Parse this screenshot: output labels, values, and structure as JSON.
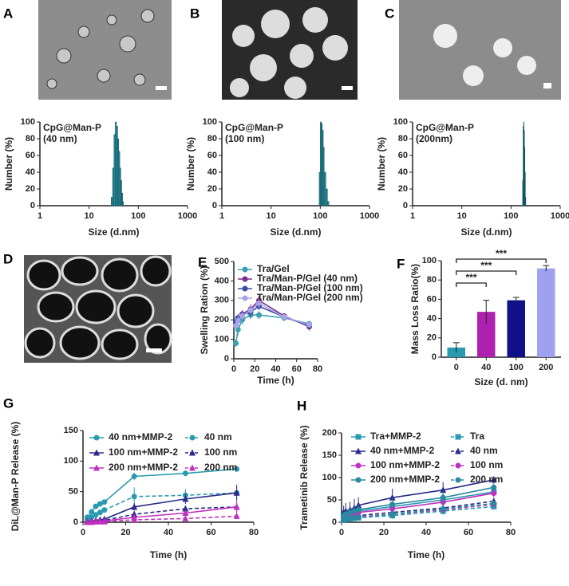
{
  "chart_data": [
    {
      "type": "image",
      "panel": "A"
    },
    {
      "type": "image",
      "panel": "B"
    },
    {
      "type": "image",
      "panel": "C"
    },
    {
      "type": "histogram",
      "annotation": [
        "CpG@Man-P",
        "(40 nm)"
      ],
      "bins": [
        28,
        30,
        32,
        34,
        36,
        38,
        40,
        42,
        44,
        46,
        48,
        50
      ],
      "values": [
        10,
        45,
        85,
        100,
        95,
        80,
        65,
        45,
        30,
        15,
        5
      ],
      "color": "#2a8a9a",
      "xscale": "log",
      "xlim": [
        1,
        1000
      ],
      "xticks": [
        1,
        10,
        100,
        1000
      ],
      "ylim": [
        0,
        100
      ],
      "yticks": [
        0,
        20,
        40,
        60,
        80,
        100
      ],
      "xlabel": "Size (d.nm)",
      "ylabel": "Number (%)"
    },
    {
      "type": "histogram",
      "annotation": [
        "CpG@Man-P",
        "(100 nm)"
      ],
      "bins": [
        95,
        100,
        105,
        110,
        115,
        120,
        130,
        140,
        150
      ],
      "values": [
        40,
        100,
        98,
        90,
        70,
        40,
        20,
        5
      ],
      "color": "#2a8a9a",
      "xscale": "log",
      "xlim": [
        1,
        1000
      ],
      "xticks": [
        1,
        10,
        100,
        1000
      ],
      "ylim": [
        0,
        100
      ],
      "yticks": [
        0,
        20,
        40,
        60,
        80,
        100
      ],
      "xlabel": "Size (d.nm)",
      "ylabel": "Number (%)"
    },
    {
      "type": "histogram",
      "annotation": [
        "CpG@Man-P",
        "(200nm)"
      ],
      "bins": [
        172,
        176,
        180,
        184,
        188,
        192,
        196,
        200
      ],
      "values": [
        30,
        95,
        100,
        90,
        70,
        40,
        10
      ],
      "color": "#2a8a9a",
      "xscale": "log",
      "xlim": [
        1,
        1000
      ],
      "xticks": [
        1,
        10,
        100,
        1000
      ],
      "ylim": [
        0,
        100
      ],
      "yticks": [
        0,
        20,
        40,
        60,
        80,
        100
      ],
      "xlabel": "Size (d.nm)",
      "ylabel": "Number (%)"
    },
    {
      "type": "image",
      "panel": "D"
    },
    {
      "type": "line",
      "panel": "E",
      "x": [
        2,
        4,
        8,
        16,
        24,
        48,
        72
      ],
      "series": [
        {
          "name": "Tra/Gel",
          "color": "#3a9fb5",
          "values": [
            80,
            150,
            200,
            225,
            225,
            210,
            180
          ],
          "errors": [
            20,
            30,
            25,
            20,
            20,
            15,
            10
          ]
        },
        {
          "name": "Tra/Man-P/Gel (40 nm)",
          "color": "#7b2d8e",
          "values": [
            180,
            200,
            230,
            255,
            300,
            220,
            165
          ],
          "errors": [
            25,
            20,
            20,
            25,
            25,
            15,
            20
          ]
        },
        {
          "name": "Tra/Man-P/Gel (100 nm)",
          "color": "#3b4aa0",
          "values": [
            190,
            210,
            225,
            240,
            270,
            215,
            170
          ],
          "errors": [
            20,
            20,
            25,
            25,
            20,
            15,
            15
          ]
        },
        {
          "name": "Tra/Man-P/Gel (200 nm)",
          "color": "#a9a4e8",
          "values": [
            170,
            195,
            220,
            250,
            285,
            215,
            175
          ],
          "errors": [
            20,
            25,
            20,
            20,
            25,
            15,
            15
          ]
        }
      ],
      "xlim": [
        0,
        80
      ],
      "xticks": [
        0,
        20,
        40,
        60,
        80
      ],
      "ylim": [
        0,
        500
      ],
      "yticks": [
        0,
        100,
        200,
        300,
        400,
        500
      ],
      "xlabel": "Time (h)",
      "ylabel": "Swelling Ration (%)"
    },
    {
      "type": "bar",
      "panel": "F",
      "categories": [
        "0",
        "40",
        "100",
        "200"
      ],
      "values": [
        10,
        47,
        59,
        92
      ],
      "errors": [
        5,
        12,
        3,
        3
      ],
      "colors": [
        "#2a9ab0",
        "#b020b0",
        "#10108a",
        "#a0a0f0"
      ],
      "brackets": [
        {
          "label": "***",
          "categories": [
            "0",
            "200"
          ]
        },
        {
          "label": "***",
          "categories": [
            "0",
            "100"
          ]
        },
        {
          "label": "***",
          "categories": [
            "0",
            "40"
          ]
        }
      ],
      "ylim": [
        0,
        100
      ],
      "yticks": [
        0,
        20,
        40,
        60,
        80,
        100
      ],
      "xlabel": "Size (d. nm)",
      "ylabel": "Mass Loss Ratio(%)"
    },
    {
      "type": "line",
      "panel": "G",
      "x": [
        2,
        4,
        6,
        8,
        10,
        24,
        48,
        72
      ],
      "series": [
        {
          "name": "40 nm+MMP-2",
          "color": "#2a9ab0",
          "marker": "circle",
          "values": [
            8,
            17,
            26,
            30,
            33,
            75,
            80,
            87
          ],
          "errors": [
            2,
            2,
            3,
            3,
            3,
            6,
            5,
            4
          ]
        },
        {
          "name": "40 nm",
          "color": "#2a9ab0",
          "marker": "circle",
          "dash": true,
          "values": [
            4,
            8,
            12,
            16,
            20,
            42,
            44,
            48
          ],
          "errors": [
            2,
            3,
            3,
            4,
            4,
            15,
            10,
            14
          ]
        },
        {
          "name": "100 nm+MMP-2",
          "color": "#2a2a8a",
          "marker": "triangle",
          "values": [
            1,
            2,
            3,
            4,
            5,
            25,
            38,
            48
          ],
          "errors": [
            1,
            1,
            1,
            1,
            2,
            6,
            8,
            12
          ]
        },
        {
          "name": "100 nm",
          "color": "#2a2a8a",
          "marker": "triangle",
          "dash": true,
          "values": [
            1,
            1,
            2,
            2,
            3,
            13,
            22,
            25
          ],
          "errors": [
            1,
            1,
            1,
            1,
            1,
            5,
            5,
            8
          ]
        },
        {
          "name": "200 nm+MMP-2",
          "color": "#c030c0",
          "marker": "triangle",
          "values": [
            0,
            1,
            1,
            2,
            2,
            8,
            15,
            25
          ],
          "errors": [
            1,
            1,
            1,
            1,
            1,
            3,
            4,
            10
          ]
        },
        {
          "name": "200 nm",
          "color": "#c030c0",
          "marker": "triangle",
          "dash": true,
          "values": [
            0,
            0,
            1,
            1,
            1,
            4,
            6,
            10
          ],
          "errors": [
            1,
            1,
            1,
            1,
            1,
            2,
            3,
            5
          ]
        }
      ],
      "xlim": [
        0,
        80
      ],
      "xticks": [
        0,
        20,
        40,
        60,
        80
      ],
      "ylim": [
        0,
        150
      ],
      "yticks": [
        0,
        50,
        100,
        150
      ],
      "xlabel": "Time (h)",
      "ylabel": "DiL@Man-P Release (%)"
    },
    {
      "type": "line",
      "panel": "H",
      "x": [
        1,
        2,
        4,
        6,
        8,
        24,
        48,
        72
      ],
      "series": [
        {
          "name": "Tra+MMP-2",
          "color": "#2a9ab0",
          "marker": "square",
          "values": [
            15,
            18,
            20,
            22,
            25,
            35,
            50,
            68
          ],
          "errors": [
            8,
            10,
            10,
            12,
            12,
            15,
            15,
            10
          ]
        },
        {
          "name": "Tra",
          "color": "#2a9ab0",
          "marker": "square",
          "dash": true,
          "values": [
            5,
            7,
            8,
            9,
            10,
            15,
            25,
            35
          ],
          "errors": [
            3,
            4,
            4,
            5,
            5,
            8,
            8,
            6
          ]
        },
        {
          "name": "40 nm+MMP-2",
          "color": "#2a2a8a",
          "marker": "triangle",
          "values": [
            22,
            25,
            28,
            32,
            38,
            55,
            72,
            95
          ],
          "errors": [
            15,
            18,
            18,
            20,
            18,
            20,
            18,
            8
          ]
        },
        {
          "name": "40 nm",
          "color": "#2a2a8a",
          "marker": "triangle",
          "dash": true,
          "values": [
            8,
            10,
            12,
            13,
            15,
            22,
            32,
            47
          ],
          "errors": [
            4,
            5,
            5,
            6,
            6,
            8,
            8,
            6
          ]
        },
        {
          "name": "100 nm+MMP-2",
          "color": "#c030c0",
          "marker": "circle",
          "values": [
            12,
            15,
            18,
            20,
            22,
            30,
            45,
            65
          ],
          "errors": [
            6,
            8,
            8,
            10,
            10,
            12,
            12,
            10
          ]
        },
        {
          "name": "100 nm",
          "color": "#c030c0",
          "marker": "circle",
          "dash": true,
          "values": [
            6,
            8,
            10,
            11,
            12,
            18,
            28,
            40
          ],
          "errors": [
            3,
            4,
            4,
            5,
            5,
            6,
            6,
            6
          ]
        },
        {
          "name": "200 nm+MMP-2",
          "color": "#2a8aa0",
          "marker": "circle",
          "values": [
            15,
            18,
            22,
            25,
            28,
            40,
            55,
            78
          ],
          "errors": [
            8,
            10,
            10,
            12,
            12,
            14,
            14,
            10
          ]
        },
        {
          "name": "200 nm",
          "color": "#2a8aa0",
          "marker": "circle",
          "dash": true,
          "values": [
            5,
            7,
            9,
            10,
            11,
            18,
            30,
            42
          ],
          "errors": [
            3,
            4,
            4,
            5,
            5,
            6,
            8,
            6
          ]
        }
      ],
      "xlim": [
        0,
        80
      ],
      "xticks": [
        0,
        20,
        40,
        60,
        80
      ],
      "ylim": [
        0,
        200
      ],
      "yticks": [
        0,
        50,
        100,
        150,
        200
      ],
      "xlabel": "Time (h)",
      "ylabel": "Trametinib Release (%)"
    }
  ]
}
